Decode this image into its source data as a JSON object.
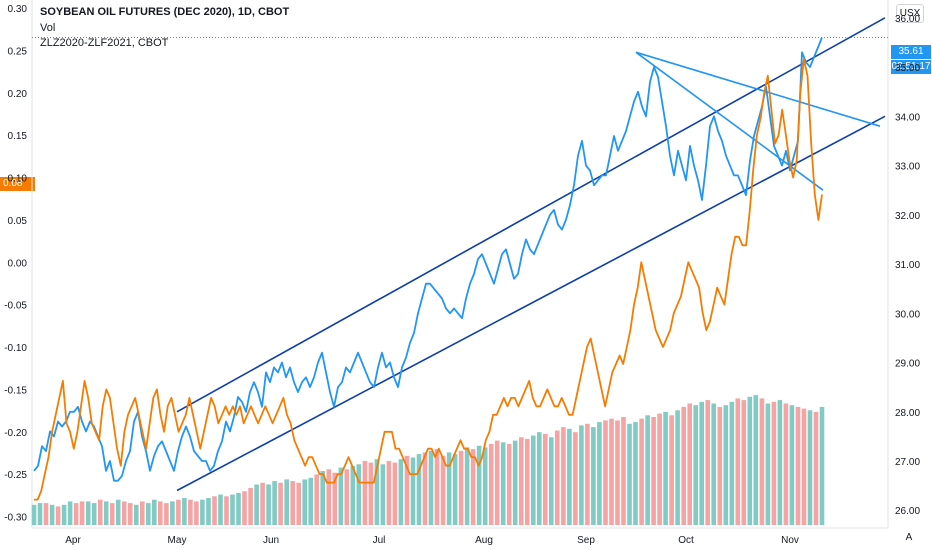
{
  "legend": {
    "main_symbol": "SOYBEAN OIL FUTURES (DEC 2020), 1D, CBOT",
    "volume": "Vol",
    "spread_symbol": "ZLZ2020-ZLF2021, CBOT"
  },
  "currency_button": "USX",
  "auto_button": "A",
  "price_tags": {
    "last_price": "35.61",
    "countdown": "08:51:17",
    "spread_value": "0.08"
  },
  "colors": {
    "price_line": "#2196f3",
    "spread_line": "#f57c00",
    "trend_lines": "#0d3fa6",
    "volume_up": "#80cbc4",
    "volume_down": "#f5a3a3",
    "price_tag_bg": "#2196f3",
    "spread_tag_bg": "#f57c00",
    "axis_text": "#131722"
  },
  "chart_data": {
    "type": "line",
    "x_labels": [
      "Apr",
      "May",
      "Jun",
      "Jul",
      "Aug",
      "Sep",
      "Oct",
      "Nov"
    ],
    "right_axis": {
      "ticks": [
        "36.00",
        "35.00",
        "34.00",
        "33.00",
        "32.00",
        "31.00",
        "30.00",
        "29.00",
        "28.00",
        "27.00",
        "26.00"
      ],
      "ylim": [
        25.7,
        36.2
      ]
    },
    "left_axis": {
      "ticks": [
        "0.30",
        "0.25",
        "0.20",
        "0.15",
        "0.10",
        "0.05",
        "0.00",
        "-0.05",
        "-0.10",
        "-0.15",
        "-0.20",
        "-0.25",
        "-0.30"
      ],
      "ylim": [
        -0.31,
        0.3
      ]
    },
    "series": [
      {
        "axis": "right",
        "values": [
          26.8,
          26.9,
          27.3,
          27.2,
          27.6,
          27.5,
          27.8,
          27.7,
          27.8,
          28.0,
          28.0,
          28.1,
          27.8,
          27.6,
          27.8,
          27.7,
          27.5,
          27.3,
          26.8,
          27.0,
          26.6,
          26.6,
          26.7,
          27.0,
          27.2,
          27.8,
          28.0,
          27.5,
          27.2,
          26.8,
          27.1,
          27.3,
          27.4,
          27.2,
          27.0,
          26.8,
          27.2,
          27.5,
          27.7,
          27.5,
          27.2,
          27.1,
          27.0,
          27.0,
          26.8,
          26.9,
          27.2,
          27.4,
          27.8,
          27.6,
          27.9,
          28.3,
          28.2,
          28.0,
          28.4,
          28.6,
          28.4,
          28.1,
          28.8,
          28.6,
          28.9,
          28.8,
          29.0,
          28.7,
          28.9,
          28.6,
          28.4,
          28.6,
          28.7,
          28.5,
          28.7,
          29.0,
          29.2,
          28.8,
          28.4,
          28.1,
          28.5,
          28.6,
          28.9,
          28.8,
          29.0,
          29.2,
          29.0,
          28.8,
          28.6,
          28.5,
          28.9,
          29.2,
          28.9,
          29.0,
          28.7,
          28.5,
          28.9,
          29.1,
          29.4,
          29.6,
          30.0,
          30.3,
          30.6,
          30.6,
          30.5,
          30.4,
          30.3,
          30.1,
          30.0,
          30.1,
          30.0,
          29.9,
          30.3,
          30.6,
          30.8,
          31.1,
          31.2,
          31.0,
          30.8,
          30.6,
          30.9,
          31.2,
          31.3,
          31.0,
          30.7,
          30.8,
          31.2,
          31.5,
          31.3,
          31.2,
          31.4,
          31.6,
          31.8,
          32.0,
          32.1,
          31.8,
          31.7,
          31.9,
          32.2,
          32.6,
          33.2,
          33.5,
          33.0,
          32.9,
          32.6,
          32.7,
          32.8,
          32.8,
          33.2,
          33.6,
          33.3,
          33.5,
          33.7,
          34.0,
          34.3,
          34.5,
          34.2,
          34.0,
          34.7,
          35.0,
          34.8,
          34.3,
          33.8,
          33.2,
          32.8,
          33.3,
          33.0,
          32.7,
          33.4,
          33.0,
          32.7,
          32.3,
          33.0,
          33.8,
          34.0,
          33.7,
          33.5,
          33.2,
          33.0,
          32.8,
          32.8,
          32.6,
          32.4,
          33.1,
          33.6,
          33.9,
          34.2,
          34.6,
          34.0,
          33.4,
          33.2,
          33.0,
          33.3,
          32.9,
          33.2,
          33.5,
          35.3,
          35.1,
          35.0,
          35.2,
          35.4,
          35.6
        ]
      },
      {
        "axis": "left",
        "values": [
          -0.28,
          -0.28,
          -0.27,
          -0.25,
          -0.23,
          -0.2,
          -0.18,
          -0.16,
          -0.14,
          -0.19,
          -0.2,
          -0.22,
          -0.2,
          -0.17,
          -0.14,
          -0.16,
          -0.19,
          -0.2,
          -0.21,
          -0.17,
          -0.15,
          -0.16,
          -0.19,
          -0.22,
          -0.24,
          -0.2,
          -0.18,
          -0.17,
          -0.16,
          -0.18,
          -0.2,
          -0.22,
          -0.19,
          -0.16,
          -0.15,
          -0.18,
          -0.2,
          -0.17,
          -0.16,
          -0.18,
          -0.2,
          -0.19,
          -0.18,
          -0.16,
          -0.18,
          -0.2,
          -0.22,
          -0.2,
          -0.18,
          -0.16,
          -0.17,
          -0.19,
          -0.18,
          -0.17,
          -0.18,
          -0.17,
          -0.18,
          -0.17,
          -0.19,
          -0.18,
          -0.17,
          -0.18,
          -0.19,
          -0.18,
          -0.17,
          -0.18,
          -0.19,
          -0.18,
          -0.17,
          -0.16,
          -0.18,
          -0.19,
          -0.21,
          -0.22,
          -0.23,
          -0.24,
          -0.23,
          -0.23,
          -0.24,
          -0.25,
          -0.25,
          -0.26,
          -0.26,
          -0.26,
          -0.25,
          -0.25,
          -0.24,
          -0.23,
          -0.24,
          -0.25,
          -0.26,
          -0.26,
          -0.26,
          -0.26,
          -0.26,
          -0.24,
          -0.22,
          -0.2,
          -0.2,
          -0.2,
          -0.22,
          -0.22,
          -0.23,
          -0.24,
          -0.25,
          -0.25,
          -0.25,
          -0.24,
          -0.23,
          -0.22,
          -0.22,
          -0.23,
          -0.22,
          -0.23,
          -0.24,
          -0.24,
          -0.23,
          -0.22,
          -0.21,
          -0.22,
          -0.22,
          -0.23,
          -0.23,
          -0.24,
          -0.23,
          -0.21,
          -0.2,
          -0.18,
          -0.18,
          -0.17,
          -0.16,
          -0.17,
          -0.16,
          -0.16,
          -0.17,
          -0.16,
          -0.15,
          -0.14,
          -0.16,
          -0.17,
          -0.17,
          -0.16,
          -0.15,
          -0.16,
          -0.17,
          -0.17,
          -0.16,
          -0.17,
          -0.18,
          -0.18,
          -0.16,
          -0.14,
          -0.12,
          -0.1,
          -0.09,
          -0.11,
          -0.13,
          -0.15,
          -0.17,
          -0.15,
          -0.13,
          -0.12,
          -0.11,
          -0.12,
          -0.1,
          -0.08,
          -0.05,
          -0.03,
          0.0,
          -0.02,
          -0.04,
          -0.06,
          -0.08,
          -0.09,
          -0.1,
          -0.09,
          -0.08,
          -0.06,
          -0.05,
          -0.04,
          -0.02,
          0.0,
          -0.01,
          -0.02,
          -0.03,
          -0.06,
          -0.08,
          -0.07,
          -0.05,
          -0.03,
          -0.04,
          -0.05,
          -0.02,
          0.01,
          0.03,
          0.03,
          0.02,
          0.02,
          0.06,
          0.11,
          0.15,
          0.17,
          0.2,
          0.22,
          0.18,
          0.14,
          0.15,
          0.18,
          0.15,
          0.12,
          0.1,
          0.12,
          0.2,
          0.24,
          0.22,
          0.14,
          0.08,
          0.05,
          0.08
        ]
      }
    ],
    "volume": {
      "values": [
        12,
        13,
        13,
        12,
        11,
        12,
        14,
        13,
        14,
        14,
        13,
        15,
        14,
        13,
        15,
        14,
        13,
        12,
        14,
        13,
        15,
        14,
        13,
        14,
        15,
        16,
        15,
        14,
        15,
        16,
        17,
        18,
        17,
        18,
        19,
        20,
        22,
        24,
        25,
        24,
        26,
        25,
        27,
        26,
        25,
        27,
        28,
        30,
        32,
        33,
        31,
        34,
        33,
        35,
        36,
        38,
        37,
        39,
        36,
        38,
        37,
        39,
        41,
        40,
        42,
        43,
        44,
        45,
        41,
        43,
        42,
        44,
        46,
        45,
        47,
        46,
        48,
        50,
        49,
        48,
        50,
        52,
        51,
        53,
        55,
        54,
        52,
        56,
        58,
        57,
        55,
        59,
        60,
        58,
        61,
        62,
        63,
        62,
        64,
        60,
        61,
        63,
        65,
        64,
        66,
        67,
        65,
        68,
        70,
        72,
        71,
        73,
        74,
        72,
        70,
        71,
        73,
        75,
        74,
        76,
        77,
        75,
        72,
        73,
        74,
        72,
        71,
        70,
        69,
        68,
        67,
        70
      ],
      "down": [
        0,
        0,
        1,
        0,
        1,
        0,
        0,
        1,
        1,
        0,
        0,
        1,
        0,
        1,
        0,
        1,
        1,
        0,
        1,
        0,
        0,
        1,
        1,
        0,
        1,
        0,
        1,
        1,
        0,
        0,
        1,
        0,
        1,
        0,
        0,
        1,
        1,
        0,
        1,
        0,
        0,
        1,
        0,
        1,
        1,
        0,
        0,
        1,
        0,
        1,
        1,
        0,
        1,
        0,
        0,
        1,
        1,
        0,
        0,
        1,
        1,
        0,
        1,
        0,
        0,
        1,
        0,
        1,
        1,
        0,
        0,
        1,
        0,
        1,
        0,
        0,
        1,
        1,
        0,
        1,
        0,
        1,
        1,
        0,
        0,
        1,
        0,
        1,
        1,
        0,
        1,
        0,
        1,
        0,
        0,
        1,
        1,
        1,
        1,
        0,
        0,
        1,
        0,
        1,
        1,
        0,
        1,
        0,
        1,
        1,
        0,
        0,
        1,
        0,
        1,
        0,
        0,
        1,
        1,
        0,
        0,
        1,
        0,
        1,
        0,
        1,
        0,
        1,
        1,
        0,
        1,
        0
      ],
      "max": 80
    },
    "drawings": [
      {
        "kind": "trend_line",
        "from": [
          "May",
          28.0
        ],
        "to": [
          "Nov",
          36.0
        ]
      },
      {
        "kind": "trend_line",
        "from": [
          "May",
          26.4
        ],
        "to": [
          "Nov",
          34.0
        ]
      },
      {
        "kind": "trend_line",
        "from": [
          "Sep",
          35.3
        ],
        "to": [
          "Nov",
          33.8
        ]
      },
      {
        "kind": "trend_line",
        "from": [
          "Sep",
          35.3
        ],
        "to": [
          "Nov",
          32.5
        ]
      }
    ]
  }
}
